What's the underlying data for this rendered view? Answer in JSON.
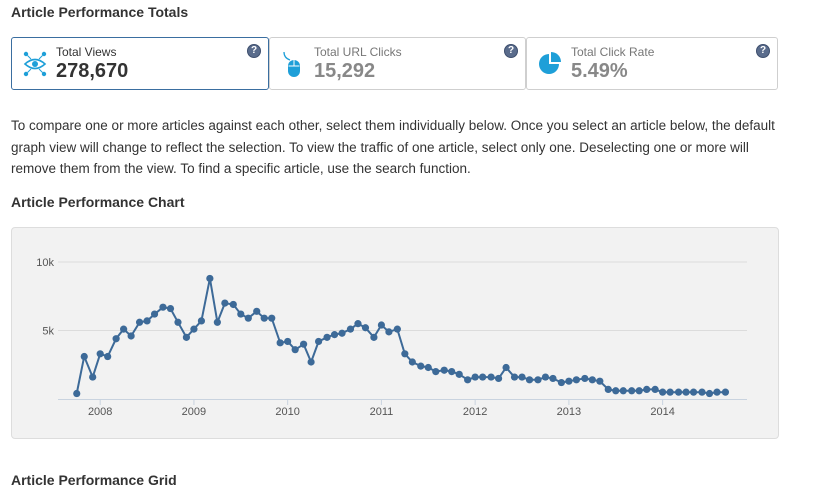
{
  "totals": {
    "title": "Article Performance Totals",
    "cards": [
      {
        "label": "Total Views",
        "value": "278,670",
        "icon": "views-icon",
        "selected": true
      },
      {
        "label": "Total URL Clicks",
        "value": "15,292",
        "icon": "mouse-icon",
        "selected": false
      },
      {
        "label": "Total Click Rate",
        "value": "5.49%",
        "icon": "pie-icon",
        "selected": false
      }
    ],
    "help_glyph": "?"
  },
  "description": "To compare one or more articles against each other, select them individually below. Once you select an article below, the default graph view will change to reflect the selection. To view the traffic of one article, select only one. Deselecting one or more will remove them from the view. To find a specific article, use the search function.",
  "chart": {
    "title": "Article Performance Chart"
  },
  "grid": {
    "title": "Article Performance Grid"
  },
  "colors": {
    "accent": "#3d6a98",
    "icon_blue": "#1e9fd8",
    "card_border_selected": "#3a6ea0"
  },
  "chart_data": {
    "type": "line",
    "title": "",
    "xlabel": "",
    "ylabel": "",
    "ylim": [
      0,
      10000
    ],
    "y_ticks": [
      "5k",
      "10k"
    ],
    "y_tick_values": [
      5000,
      10000
    ],
    "x_ticks": [
      "2008",
      "2009",
      "2010",
      "2011",
      "2012",
      "2013",
      "2014"
    ],
    "x_tick_values": [
      2008,
      2009,
      2010,
      2011,
      2012,
      2013,
      2014
    ],
    "grid": true,
    "series": [
      {
        "x": [
          2007.75,
          2007.83,
          2007.92,
          2008.0,
          2008.08,
          2008.17,
          2008.25,
          2008.33,
          2008.42,
          2008.5,
          2008.58,
          2008.67,
          2008.75,
          2008.83,
          2008.92,
          2009.0,
          2009.08,
          2009.17,
          2009.25,
          2009.33,
          2009.42,
          2009.5,
          2009.58,
          2009.67,
          2009.75,
          2009.83,
          2009.92,
          2010.0,
          2010.08,
          2010.17,
          2010.25,
          2010.33,
          2010.42,
          2010.5,
          2010.58,
          2010.67,
          2010.75,
          2010.83,
          2010.92,
          2011.0,
          2011.08,
          2011.17,
          2011.25,
          2011.33,
          2011.42,
          2011.5,
          2011.58,
          2011.67,
          2011.75,
          2011.83,
          2011.92,
          2012.0,
          2012.08,
          2012.17,
          2012.25,
          2012.33,
          2012.42,
          2012.5,
          2012.58,
          2012.67,
          2012.75,
          2012.83,
          2012.92,
          2013.0,
          2013.08,
          2013.17,
          2013.25,
          2013.33,
          2013.42,
          2013.5,
          2013.58,
          2013.67,
          2013.75,
          2013.83,
          2013.92,
          2014.0,
          2014.08,
          2014.17,
          2014.25,
          2014.33,
          2014.42,
          2014.5,
          2014.58,
          2014.67
        ],
        "values": [
          400,
          3100,
          1600,
          3300,
          3100,
          4400,
          5100,
          4600,
          5600,
          5700,
          6200,
          6700,
          6600,
          5600,
          4500,
          5100,
          5700,
          8800,
          5600,
          7000,
          6900,
          6200,
          5900,
          6400,
          5900,
          5900,
          4100,
          4200,
          3600,
          4000,
          2700,
          4200,
          4500,
          4700,
          4800,
          5100,
          5500,
          5200,
          4500,
          5400,
          4900,
          5100,
          3300,
          2700,
          2400,
          2300,
          2000,
          2100,
          2000,
          1800,
          1400,
          1600,
          1600,
          1600,
          1500,
          2300,
          1600,
          1600,
          1400,
          1400,
          1600,
          1500,
          1200,
          1300,
          1400,
          1500,
          1400,
          1300,
          700,
          600,
          600,
          600,
          600,
          700,
          700,
          500,
          500,
          500,
          500,
          500,
          500,
          400,
          500,
          500
        ]
      }
    ]
  }
}
